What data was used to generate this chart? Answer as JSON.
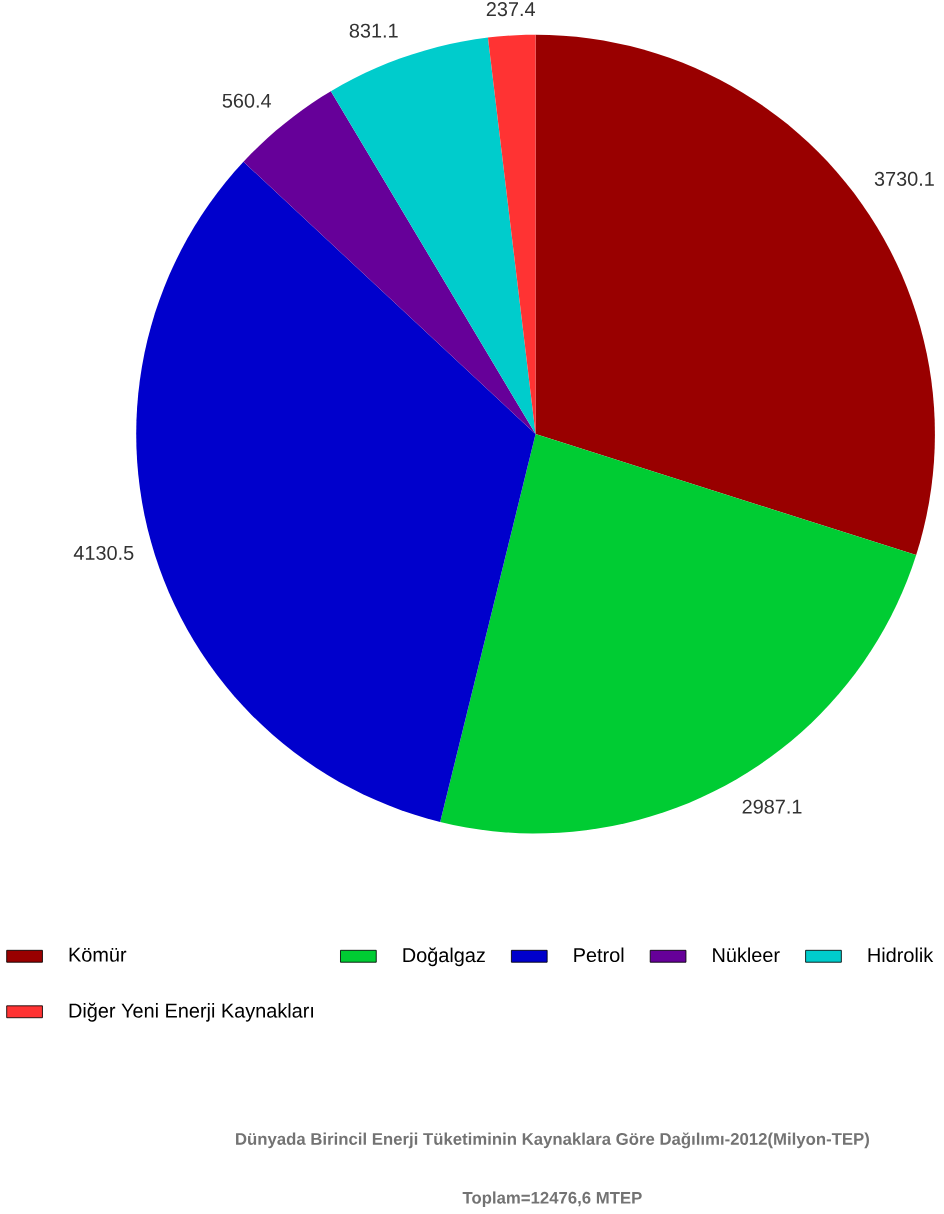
{
  "chart_data": {
    "type": "pie",
    "categories": [
      "Kömür",
      "Doğalgaz",
      "Petrol",
      "Nükleer",
      "Hidrolik",
      "Diğer Yeni Enerji Kaynakları"
    ],
    "values": [
      3730.1,
      2987.1,
      4130.5,
      560.4,
      831.1,
      237.4
    ],
    "colors": [
      "#990000",
      "#00cc33",
      "#0000cc",
      "#660099",
      "#00cccc",
      "#ff3333"
    ],
    "data_labels": true,
    "legend": "bottom",
    "annotations": [
      "Dünyada Birincil Enerji Tüketiminin Kaynaklara Göre Dağılımı-2012(Milyon-TEP)",
      "Toplam=12476,6 MTEP"
    ]
  }
}
